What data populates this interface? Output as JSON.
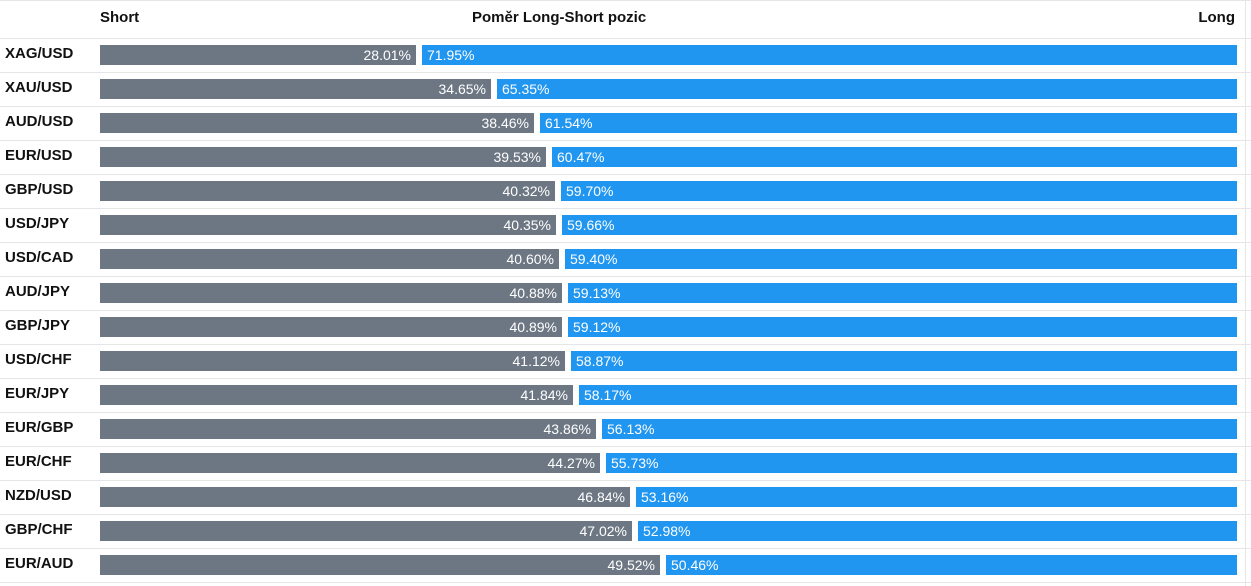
{
  "header": {
    "short_label": "Short",
    "title": "Poměr Long-Short pozic",
    "long_label": "Long"
  },
  "colors": {
    "short": "#6d7784",
    "long": "#2196f0",
    "grid": "#e6e6e6"
  },
  "chart_data": {
    "type": "bar",
    "title": "Poměr Long-Short pozic",
    "categories": [
      "XAG/USD",
      "XAU/USD",
      "AUD/USD",
      "EUR/USD",
      "GBP/USD",
      "USD/JPY",
      "USD/CAD",
      "AUD/JPY",
      "GBP/JPY",
      "USD/CHF",
      "EUR/JPY",
      "EUR/GBP",
      "EUR/CHF",
      "NZD/USD",
      "GBP/CHF",
      "EUR/AUD"
    ],
    "series": [
      {
        "name": "Short",
        "values": [
          28.01,
          34.65,
          38.46,
          39.53,
          40.32,
          40.35,
          40.6,
          40.88,
          40.89,
          41.12,
          41.84,
          43.86,
          44.27,
          46.84,
          47.02,
          49.52
        ],
        "labels": [
          "28.01%",
          "34.65%",
          "38.46%",
          "39.53%",
          "40.32%",
          "40.35%",
          "40.60%",
          "40.88%",
          "40.89%",
          "41.12%",
          "41.84%",
          "43.86%",
          "44.27%",
          "46.84%",
          "47.02%",
          "49.52%"
        ]
      },
      {
        "name": "Long",
        "values": [
          71.95,
          65.35,
          61.54,
          60.47,
          59.7,
          59.66,
          59.4,
          59.13,
          59.12,
          58.87,
          58.17,
          56.13,
          55.73,
          53.16,
          52.98,
          50.46
        ],
        "labels": [
          "71.95%",
          "65.35%",
          "61.54%",
          "60.47%",
          "59.70%",
          "59.66%",
          "59.40%",
          "59.13%",
          "59.12%",
          "58.87%",
          "58.17%",
          "56.13%",
          "55.73%",
          "53.16%",
          "52.98%",
          "50.46%"
        ]
      }
    ],
    "stacked": true,
    "orientation": "horizontal",
    "xlim": [
      0,
      100
    ],
    "grid": true,
    "legend": "top"
  }
}
